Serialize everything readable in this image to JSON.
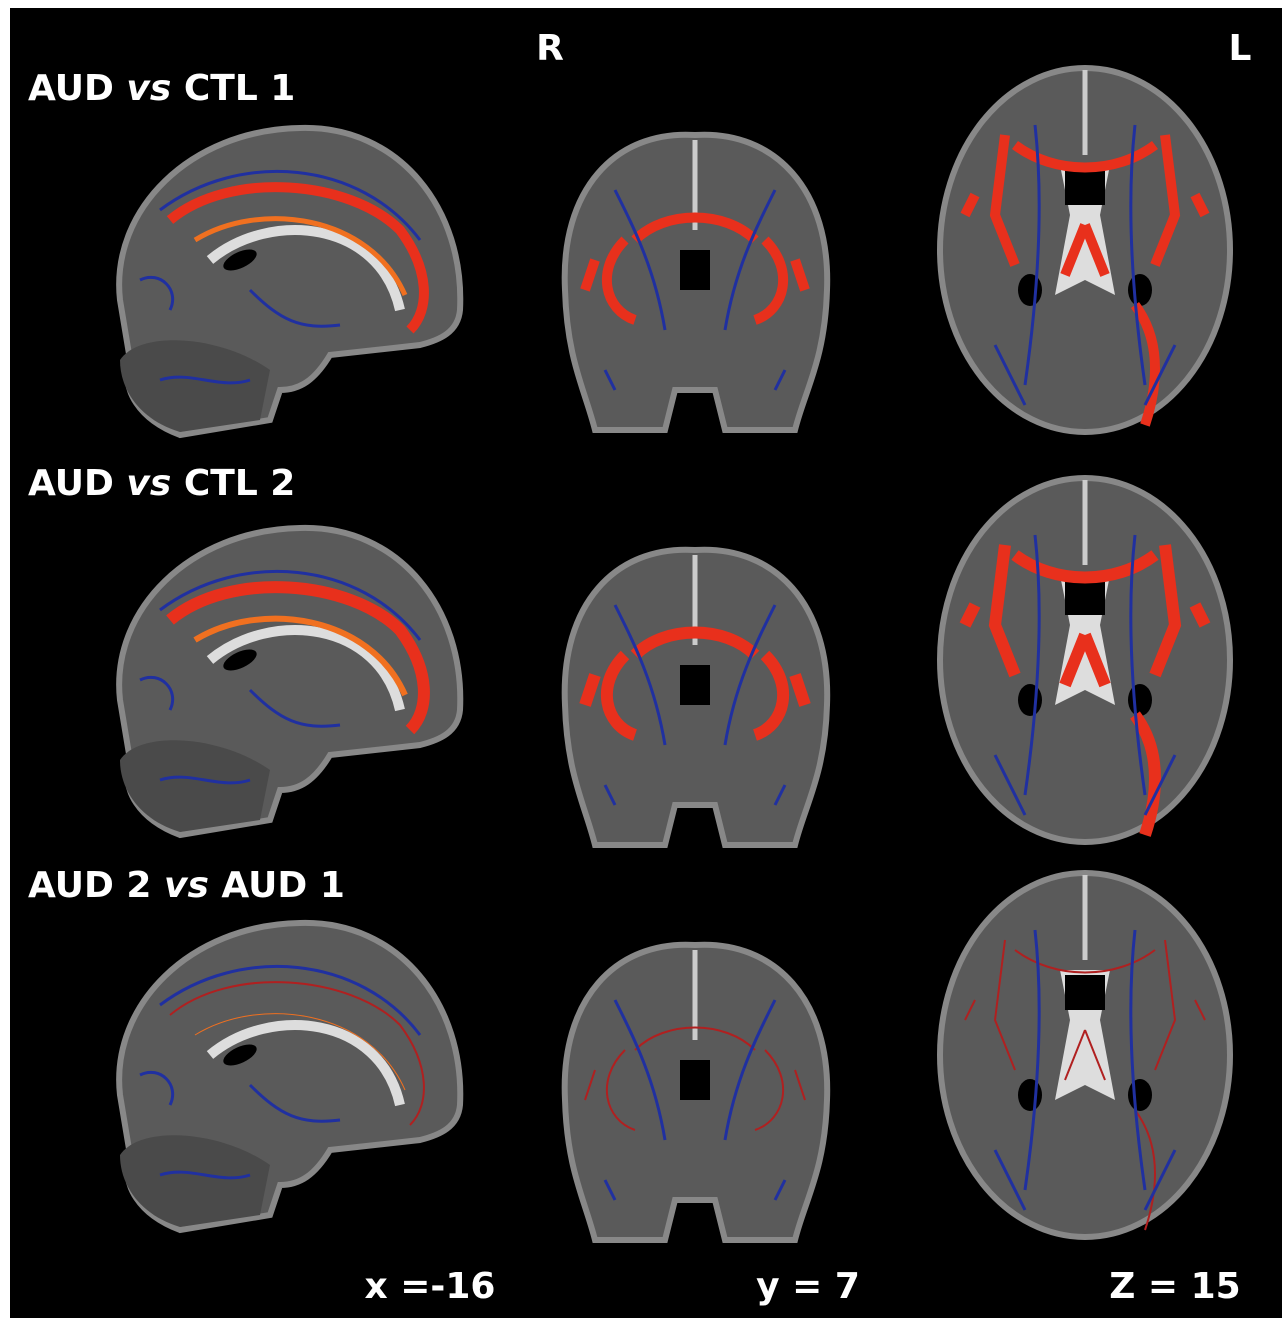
{
  "orientation": {
    "right": "R",
    "left": "L"
  },
  "rows": [
    {
      "before": "AUD",
      "italic": "vs",
      "after": "CTL 1"
    },
    {
      "before": "AUD",
      "italic": "vs",
      "after": "CTL 2"
    },
    {
      "before": "AUD 2",
      "italic": "vs",
      "after": "AUD 1"
    }
  ],
  "coordinates": [
    "x =-16",
    "y = 7",
    "Z = 15"
  ]
}
